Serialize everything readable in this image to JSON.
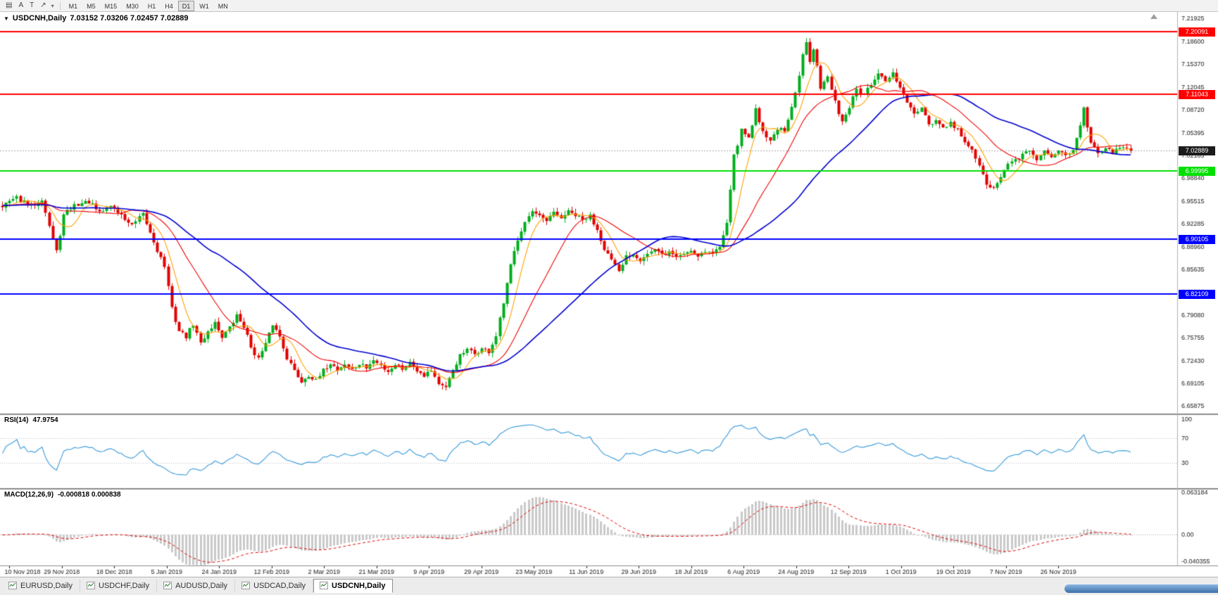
{
  "toolbar": {
    "tools": [
      {
        "name": "chart-windows",
        "glyph": "▤"
      },
      {
        "name": "cursor",
        "glyph": "A"
      },
      {
        "name": "text",
        "glyph": "T"
      },
      {
        "name": "drawing",
        "glyph": "↗"
      }
    ],
    "dropdown_caret": "▾",
    "timeframes": [
      {
        "label": "M1"
      },
      {
        "label": "M5"
      },
      {
        "label": "M15"
      },
      {
        "label": "M30"
      },
      {
        "label": "H1"
      },
      {
        "label": "H4"
      },
      {
        "label": "D1",
        "active": true
      },
      {
        "label": "W1"
      },
      {
        "label": "MN"
      }
    ],
    "active_timeframe": "D1"
  },
  "chart": {
    "dropdown_glyph": "▼",
    "title_symbol": "USDCNH,Daily",
    "ohlc_text": "7.03152 7.03206 7.02457 7.02889"
  },
  "chart_data": {
    "type": "candlestick",
    "symbol": "USDCNH",
    "timeframe": "Daily",
    "open": 7.03152,
    "high": 7.03206,
    "low": 7.02457,
    "close": 7.02889,
    "current_price": 7.02889,
    "current_price_badge": {
      "label": "7.02889",
      "color": "#1b1b1b"
    },
    "up_color": "#00ad1d",
    "down_color": "#e00000",
    "y_axis_ticks": [
      "7.21925",
      "7.18600",
      "7.15370",
      "7.12045",
      "7.08720",
      "7.05395",
      "7.02165",
      "6.98840",
      "6.95515",
      "6.92285",
      "6.88960",
      "6.85635",
      "6.82310",
      "6.79080",
      "6.75755",
      "6.72430",
      "6.69105",
      "6.65875"
    ],
    "x_axis_dates": [
      "10 Nov 2018",
      "29 Nov 2018",
      "18 Dec 2018",
      "5 Jan 2019",
      "24 Jan 2019",
      "12 Feb 2019",
      "2 Mar 2019",
      "21 Mar 2019",
      "9 Apr 2019",
      "29 Apr 2019",
      "23 May 2019",
      "11 Jun 2019",
      "29 Jun 2019",
      "18 Jul 2019",
      "6 Aug 2019",
      "24 Aug 2019",
      "12 Sep 2019",
      "1 Oct 2019",
      "19 Oct 2019",
      "7 Nov 2019",
      "26 Nov 2019"
    ],
    "bars": 314,
    "close_keyframes": [
      [
        0,
        6.95
      ],
      [
        4,
        6.96
      ],
      [
        8,
        6.948
      ],
      [
        11,
        6.96
      ],
      [
        13,
        6.92
      ],
      [
        15,
        6.882
      ],
      [
        17,
        6.935
      ],
      [
        20,
        6.95
      ],
      [
        24,
        6.955
      ],
      [
        27,
        6.938
      ],
      [
        30,
        6.95
      ],
      [
        33,
        6.935
      ],
      [
        36,
        6.92
      ],
      [
        39,
        6.936
      ],
      [
        41,
        6.91
      ],
      [
        43,
        6.885
      ],
      [
        45,
        6.862
      ],
      [
        47,
        6.8
      ],
      [
        49,
        6.768
      ],
      [
        51,
        6.76
      ],
      [
        53,
        6.778
      ],
      [
        55,
        6.75
      ],
      [
        57,
        6.768
      ],
      [
        59,
        6.78
      ],
      [
        61,
        6.76
      ],
      [
        63,
        6.772
      ],
      [
        65,
        6.79
      ],
      [
        67,
        6.775
      ],
      [
        69,
        6.745
      ],
      [
        71,
        6.728
      ],
      [
        73,
        6.748
      ],
      [
        75,
        6.778
      ],
      [
        77,
        6.76
      ],
      [
        79,
        6.73
      ],
      [
        81,
        6.71
      ],
      [
        83,
        6.695
      ],
      [
        85,
        6.705
      ],
      [
        87,
        6.695
      ],
      [
        89,
        6.71
      ],
      [
        91,
        6.722
      ],
      [
        93,
        6.712
      ],
      [
        95,
        6.72
      ],
      [
        97,
        6.712
      ],
      [
        99,
        6.72
      ],
      [
        101,
        6.715
      ],
      [
        103,
        6.725
      ],
      [
        105,
        6.718
      ],
      [
        107,
        6.71
      ],
      [
        109,
        6.72
      ],
      [
        111,
        6.714
      ],
      [
        113,
        6.722
      ],
      [
        115,
        6.712
      ],
      [
        117,
        6.705
      ],
      [
        119,
        6.712
      ],
      [
        121,
        6.692
      ],
      [
        123,
        6.684
      ],
      [
        125,
        6.712
      ],
      [
        127,
        6.732
      ],
      [
        129,
        6.74
      ],
      [
        131,
        6.735
      ],
      [
        133,
        6.742
      ],
      [
        135,
        6.738
      ],
      [
        137,
        6.76
      ],
      [
        139,
        6.808
      ],
      [
        141,
        6.862
      ],
      [
        143,
        6.902
      ],
      [
        145,
        6.928
      ],
      [
        147,
        6.94
      ],
      [
        149,
        6.932
      ],
      [
        151,
        6.926
      ],
      [
        153,
        6.938
      ],
      [
        155,
        6.932
      ],
      [
        157,
        6.94
      ],
      [
        159,
        6.935
      ],
      [
        161,
        6.928
      ],
      [
        163,
        6.934
      ],
      [
        165,
        6.915
      ],
      [
        167,
        6.888
      ],
      [
        169,
        6.87
      ],
      [
        171,
        6.852
      ],
      [
        173,
        6.876
      ],
      [
        175,
        6.88
      ],
      [
        177,
        6.872
      ],
      [
        179,
        6.88
      ],
      [
        181,
        6.885
      ],
      [
        183,
        6.878
      ],
      [
        185,
        6.882
      ],
      [
        187,
        6.876
      ],
      [
        189,
        6.88
      ],
      [
        191,
        6.885
      ],
      [
        193,
        6.878
      ],
      [
        195,
        6.884
      ],
      [
        197,
        6.88
      ],
      [
        199,
        6.89
      ],
      [
        201,
        6.928
      ],
      [
        202,
        6.975
      ],
      [
        203,
        7.02
      ],
      [
        205,
        7.058
      ],
      [
        207,
        7.048
      ],
      [
        209,
        7.088
      ],
      [
        211,
        7.058
      ],
      [
        213,
        7.042
      ],
      [
        215,
        7.062
      ],
      [
        217,
        7.055
      ],
      [
        219,
        7.09
      ],
      [
        221,
        7.135
      ],
      [
        222,
        7.168
      ],
      [
        223,
        7.188
      ],
      [
        224,
        7.16
      ],
      [
        225,
        7.178
      ],
      [
        226,
        7.155
      ],
      [
        227,
        7.12
      ],
      [
        229,
        7.135
      ],
      [
        231,
        7.098
      ],
      [
        233,
        7.072
      ],
      [
        235,
        7.092
      ],
      [
        237,
        7.118
      ],
      [
        239,
        7.108
      ],
      [
        241,
        7.125
      ],
      [
        243,
        7.138
      ],
      [
        245,
        7.128
      ],
      [
        247,
        7.14
      ],
      [
        249,
        7.12
      ],
      [
        251,
        7.098
      ],
      [
        253,
        7.082
      ],
      [
        255,
        7.088
      ],
      [
        257,
        7.065
      ],
      [
        259,
        7.072
      ],
      [
        261,
        7.06
      ],
      [
        263,
        7.068
      ],
      [
        265,
        7.058
      ],
      [
        267,
        7.042
      ],
      [
        269,
        7.028
      ],
      [
        271,
        7.005
      ],
      [
        273,
        6.982
      ],
      [
        275,
        6.972
      ],
      [
        277,
        6.992
      ],
      [
        279,
        7.008
      ],
      [
        281,
        7.015
      ],
      [
        283,
        7.022
      ],
      [
        285,
        7.028
      ],
      [
        287,
        7.018
      ],
      [
        289,
        7.026
      ],
      [
        291,
        7.02
      ],
      [
        293,
        7.028
      ],
      [
        295,
        7.022
      ],
      [
        297,
        7.032
      ],
      [
        299,
        7.068
      ],
      [
        300,
        7.092
      ],
      [
        301,
        7.06
      ],
      [
        302,
        7.038
      ],
      [
        304,
        7.028
      ],
      [
        306,
        7.034
      ],
      [
        308,
        7.026
      ],
      [
        310,
        7.032
      ],
      [
        313,
        7.029
      ]
    ],
    "horizontal_lines": [
      {
        "value": 7.20091,
        "label": "7.20091",
        "color": "#ff0000"
      },
      {
        "value": 7.11043,
        "label": "7.11043",
        "color": "#ff0000"
      },
      {
        "value": 6.99995,
        "label": "6.99995",
        "color": "#00e000"
      },
      {
        "value": 6.90105,
        "label": "6.90105",
        "color": "#0000ff"
      },
      {
        "value": 6.82109,
        "label": "6.82109",
        "color": "#0000ff"
      }
    ],
    "moving_averages": [
      {
        "period": 7,
        "color": "#ffa000"
      },
      {
        "period": 20,
        "color": "#f00000"
      },
      {
        "period": 45,
        "color": "#0000d0"
      }
    ],
    "rsi": {
      "name": "RSI(14)",
      "value": "47.9754",
      "period": 14,
      "axis_labels": [
        "100",
        "70",
        "30"
      ],
      "dotted_levels": [
        70,
        30
      ],
      "color": "#46a0dc"
    },
    "macd": {
      "name": "MACD(12,26,9)",
      "values_text": "-0.000818 0.000838",
      "fast": 12,
      "slow": 26,
      "signal": 9,
      "axis_labels": [
        {
          "value": 0.063184,
          "label": "0.063184"
        },
        {
          "value": 0,
          "label": "0.00"
        },
        {
          "value": -0.040355,
          "label": "-0.040355"
        }
      ],
      "histogram_color": "#c9c9c9",
      "signal_color": "#e00000"
    }
  },
  "tabs": [
    {
      "label": "EURUSD,Daily"
    },
    {
      "label": "USDCHF,Daily"
    },
    {
      "label": "AUDUSD,Daily"
    },
    {
      "label": "USDCAD,Daily"
    },
    {
      "label": "USDCNH,Daily",
      "active": true
    }
  ]
}
